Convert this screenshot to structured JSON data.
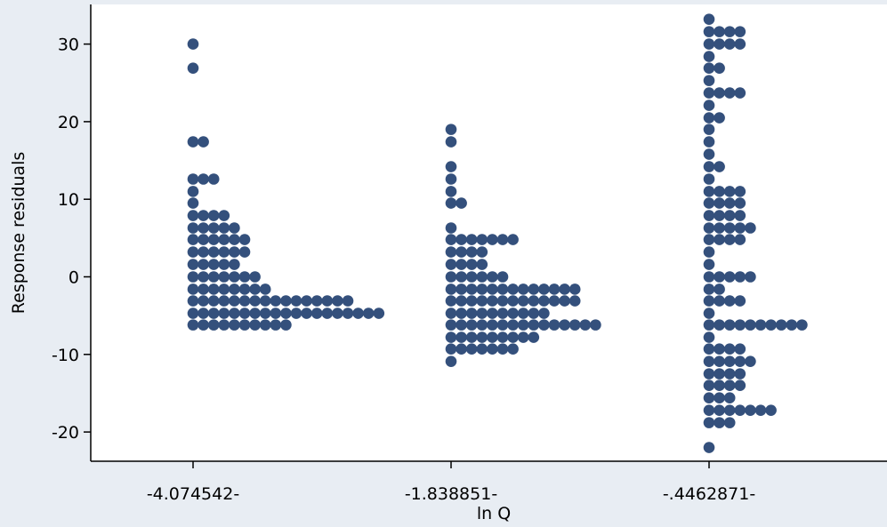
{
  "chart_data": {
    "type": "scatter",
    "subtype": "dot-strip",
    "title": "",
    "xlabel": "ln Q",
    "ylabel": "Response residuals",
    "ylim": [
      -24,
      35
    ],
    "y_ticks": [
      -20,
      -10,
      0,
      10,
      20,
      30
    ],
    "grid": false,
    "marker_color": "#34507c",
    "plot_background": "#ffffff",
    "frame_background": "#e8edf3",
    "groups": [
      {
        "label": "-4.074542-",
        "x": -4.074542,
        "rows": [
          {
            "y": 30.0,
            "count": 1
          },
          {
            "y": 26.9,
            "count": 1
          },
          {
            "y": 17.4,
            "count": 2
          },
          {
            "y": 12.6,
            "count": 3
          },
          {
            "y": 11.0,
            "count": 1
          },
          {
            "y": 9.5,
            "count": 1
          },
          {
            "y": 7.9,
            "count": 4
          },
          {
            "y": 6.3,
            "count": 5
          },
          {
            "y": 4.8,
            "count": 6
          },
          {
            "y": 3.2,
            "count": 6
          },
          {
            "y": 1.6,
            "count": 5
          },
          {
            "y": 0.0,
            "count": 7
          },
          {
            "y": -1.6,
            "count": 8
          },
          {
            "y": -3.1,
            "count": 16
          },
          {
            "y": -4.7,
            "count": 19
          },
          {
            "y": -6.2,
            "count": 10
          }
        ]
      },
      {
        "label": "-1.838851-",
        "x": -1.838851,
        "rows": [
          {
            "y": 19.0,
            "count": 1
          },
          {
            "y": 17.4,
            "count": 1
          },
          {
            "y": 14.2,
            "count": 1
          },
          {
            "y": 12.6,
            "count": 1
          },
          {
            "y": 11.0,
            "count": 1
          },
          {
            "y": 9.5,
            "count": 2
          },
          {
            "y": 6.3,
            "count": 1
          },
          {
            "y": 4.8,
            "count": 7
          },
          {
            "y": 3.2,
            "count": 4
          },
          {
            "y": 1.6,
            "count": 4
          },
          {
            "y": 0.0,
            "count": 6
          },
          {
            "y": -1.6,
            "count": 13
          },
          {
            "y": -3.1,
            "count": 13
          },
          {
            "y": -4.7,
            "count": 10
          },
          {
            "y": -6.2,
            "count": 15
          },
          {
            "y": -7.8,
            "count": 9
          },
          {
            "y": -9.3,
            "count": 7
          },
          {
            "y": -10.9,
            "count": 1
          }
        ]
      },
      {
        "label": "-.4462871-",
        "x": -0.4462871,
        "rows": [
          {
            "y": 33.2,
            "count": 1
          },
          {
            "y": 31.6,
            "count": 4
          },
          {
            "y": 30.0,
            "count": 4
          },
          {
            "y": 28.4,
            "count": 1
          },
          {
            "y": 26.9,
            "count": 2
          },
          {
            "y": 25.3,
            "count": 1
          },
          {
            "y": 23.7,
            "count": 4
          },
          {
            "y": 22.1,
            "count": 1
          },
          {
            "y": 20.5,
            "count": 2
          },
          {
            "y": 19.0,
            "count": 1
          },
          {
            "y": 17.4,
            "count": 1
          },
          {
            "y": 15.8,
            "count": 1
          },
          {
            "y": 14.2,
            "count": 2
          },
          {
            "y": 12.6,
            "count": 1
          },
          {
            "y": 11.0,
            "count": 4
          },
          {
            "y": 9.5,
            "count": 4
          },
          {
            "y": 7.9,
            "count": 4
          },
          {
            "y": 6.3,
            "count": 5
          },
          {
            "y": 4.8,
            "count": 4
          },
          {
            "y": 3.2,
            "count": 1
          },
          {
            "y": 1.6,
            "count": 1
          },
          {
            "y": 0.0,
            "count": 5
          },
          {
            "y": -1.6,
            "count": 2
          },
          {
            "y": -3.1,
            "count": 4
          },
          {
            "y": -4.7,
            "count": 1
          },
          {
            "y": -6.2,
            "count": 10
          },
          {
            "y": -7.8,
            "count": 1
          },
          {
            "y": -9.3,
            "count": 4
          },
          {
            "y": -10.9,
            "count": 5
          },
          {
            "y": -12.5,
            "count": 4
          },
          {
            "y": -14.0,
            "count": 4
          },
          {
            "y": -15.6,
            "count": 3
          },
          {
            "y": -17.2,
            "count": 7
          },
          {
            "y": -18.8,
            "count": 3
          },
          {
            "y": -22.0,
            "count": 1
          }
        ]
      }
    ]
  }
}
